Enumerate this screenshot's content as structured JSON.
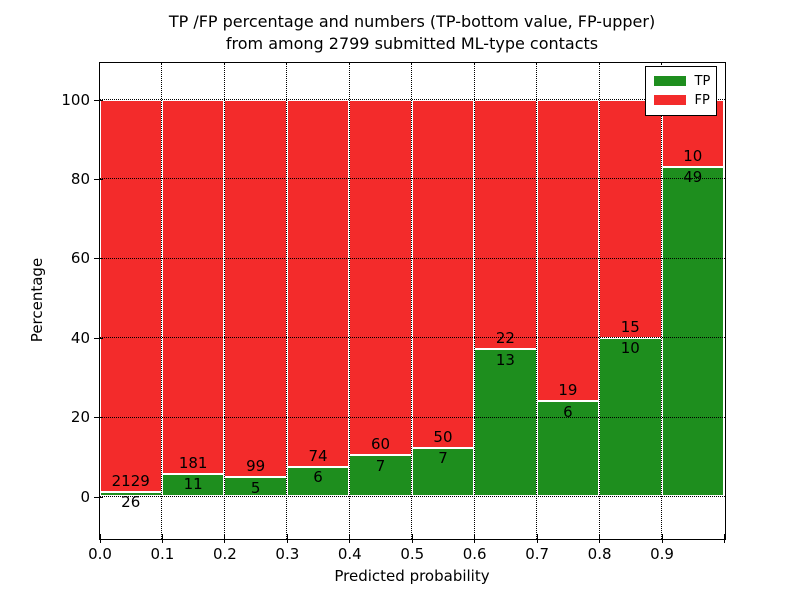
{
  "title": {
    "line1": "TP /FP percentage and numbers (TP-bottom value, FP-upper)",
    "line2": "from among 2799 submitted ML-type contacts"
  },
  "axes": {
    "xlabel": "Predicted probability",
    "ylabel": "Percentage",
    "xtick_labels": [
      "0.0",
      "0.1",
      "0.2",
      "0.3",
      "0.4",
      "0.5",
      "0.6",
      "0.7",
      "0.8",
      "0.9"
    ],
    "ytick_labels": [
      "0",
      "20",
      "40",
      "60",
      "80",
      "100"
    ]
  },
  "legend": {
    "items": [
      {
        "label": "TP",
        "color": "#1e8e1e"
      },
      {
        "label": "FP",
        "color": "#f32b2b"
      }
    ]
  },
  "colors": {
    "tp": "#1e8e1e",
    "fp": "#f32b2b",
    "bar_edge": "#ffffff",
    "grid": "#000000"
  },
  "chart_data": {
    "type": "bar",
    "stacked": true,
    "normalized": "each bin stacked to 100 percent",
    "title": "TP /FP percentage and numbers (TP-bottom value, FP-upper) from among 2799 submitted ML-type contacts",
    "xlabel": "Predicted probability",
    "ylabel": "Percentage",
    "bin_edges": [
      0.0,
      0.1,
      0.2,
      0.3,
      0.4,
      0.5,
      0.6,
      0.7,
      0.8,
      0.9,
      1.0
    ],
    "series": [
      {
        "name": "TP",
        "position": "bottom",
        "counts": [
          26,
          11,
          5,
          6,
          7,
          7,
          13,
          6,
          10,
          49
        ]
      },
      {
        "name": "FP",
        "position": "top",
        "counts": [
          2129,
          181,
          99,
          74,
          60,
          50,
          22,
          19,
          15,
          10
        ]
      }
    ],
    "tp_percent_per_bin": [
      1.21,
      5.73,
      4.81,
      7.5,
      10.45,
      12.28,
      37.14,
      24.0,
      40.0,
      83.05
    ],
    "total_contacts": 2799,
    "ylim": [
      0,
      100
    ],
    "yticks": [
      0,
      20,
      40,
      60,
      80,
      100
    ],
    "grid": "dotted",
    "legend_position": "upper right"
  }
}
